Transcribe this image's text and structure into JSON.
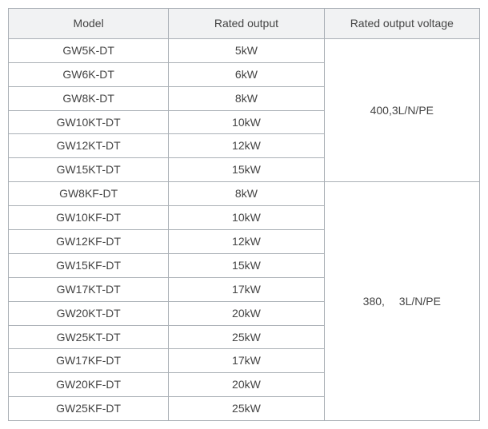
{
  "table": {
    "border_color": "#aab0b6",
    "header_bg": "#f1f2f3",
    "row_bg": "#ffffff",
    "col_widths": [
      "34%",
      "33%",
      "33%"
    ],
    "header_padding": "9px 4px",
    "columns": [
      "Model",
      "Rated output",
      "Rated output voltage"
    ],
    "groups": [
      {
        "voltage": "400,3L/N/PE",
        "rows": [
          {
            "model": "GW5K-DT",
            "output": "5kW"
          },
          {
            "model": "GW6K-DT",
            "output": "6kW"
          },
          {
            "model": "GW8K-DT",
            "output": "8kW"
          },
          {
            "model": "GW10KT-DT",
            "output": "10kW"
          },
          {
            "model": "GW12KT-DT",
            "output": "12kW"
          },
          {
            "model": "GW15KT-DT",
            "output": "15kW"
          }
        ]
      },
      {
        "voltage": "380,  3L/N/PE",
        "rows": [
          {
            "model": "GW8KF-DT",
            "output": "8kW"
          },
          {
            "model": "GW10KF-DT",
            "output": "10kW"
          },
          {
            "model": "GW12KF-DT",
            "output": "12kW"
          },
          {
            "model": "GW15KF-DT",
            "output": "15kW"
          },
          {
            "model": "GW17KT-DT",
            "output": "17kW"
          },
          {
            "model": "GW20KT-DT",
            "output": "20kW"
          },
          {
            "model": "GW25KT-DT",
            "output": "25kW"
          },
          {
            "model": "GW17KF-DT",
            "output": "17kW"
          },
          {
            "model": "GW20KF-DT",
            "output": "20kW"
          },
          {
            "model": "GW25KF-DT",
            "output": "25kW"
          }
        ]
      }
    ]
  }
}
